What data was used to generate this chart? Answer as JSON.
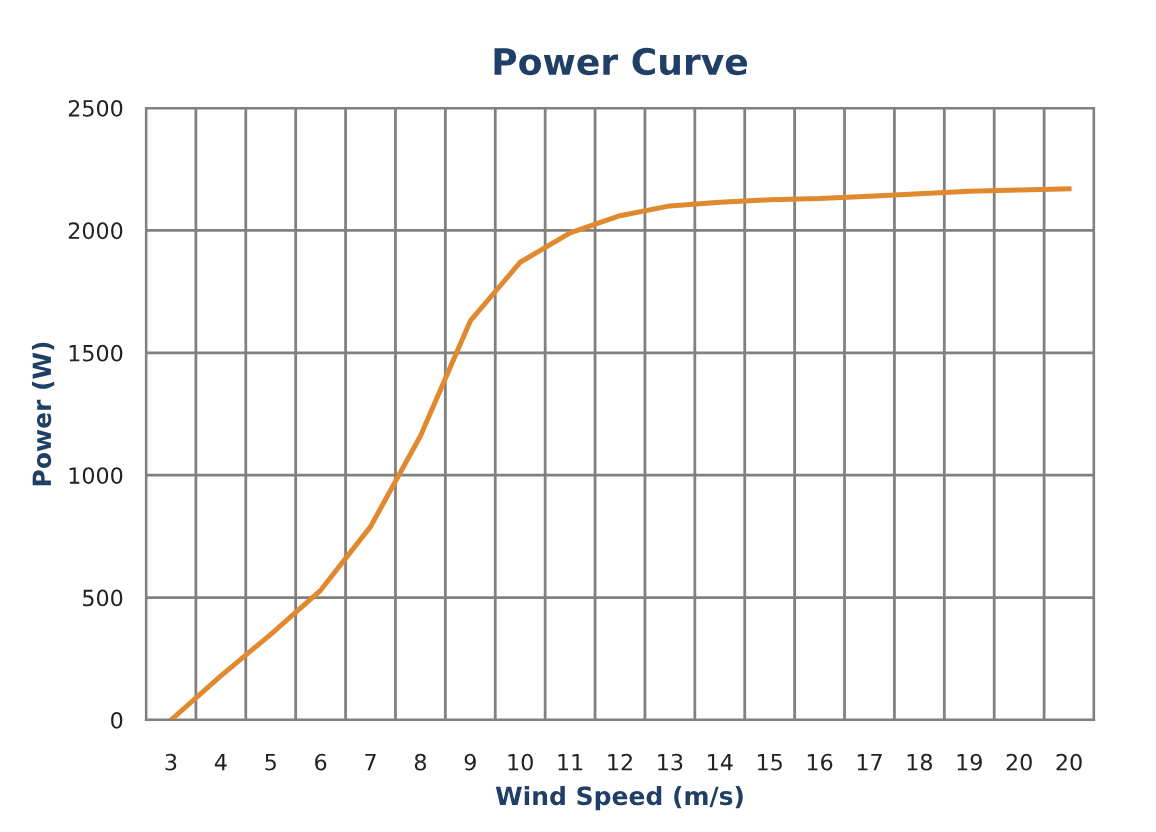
{
  "chart_data": {
    "type": "line",
    "title": "Power Curve",
    "xlabel": "Wind Speed (m/s)",
    "ylabel": "Power (W)",
    "categories": [
      "3",
      "4",
      "5",
      "6",
      "7",
      "8",
      "9",
      "10",
      "11",
      "12",
      "13",
      "14",
      "15",
      "16",
      "17",
      "18",
      "19",
      "20",
      "20"
    ],
    "series": [
      {
        "color": "#e0892f",
        "values": [
          0,
          180,
          350,
          530,
          790,
          1160,
          1630,
          1870,
          1990,
          2060,
          2100,
          2115,
          2125,
          2130,
          2140,
          2150,
          2160,
          2165,
          2170
        ]
      }
    ],
    "ylim": [
      0,
      2500
    ],
    "yticks": [
      0,
      500,
      1000,
      1500,
      2000,
      2500
    ],
    "grid": true,
    "legend": false,
    "marker": "none",
    "line_style": "solid"
  }
}
